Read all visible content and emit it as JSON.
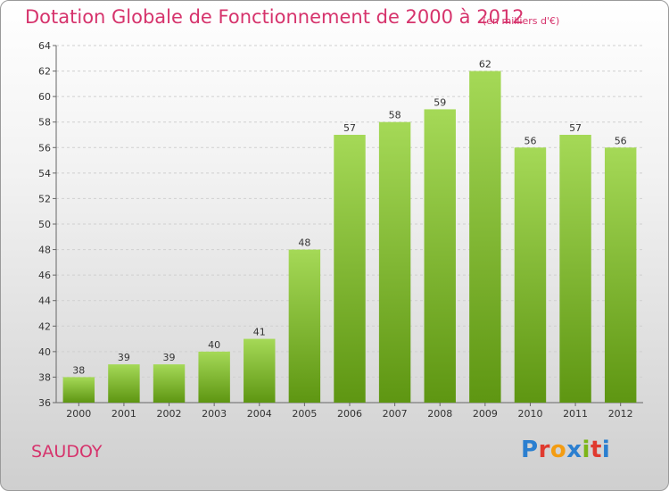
{
  "header": {
    "title": "Dotation Globale de Fonctionnement de 2000 à 2012",
    "unit_note": "(en milliers d'€)"
  },
  "footer": {
    "commune": "SAUDOY",
    "logo_text": "Proxiti",
    "logo_colors": [
      "#2b7fd0",
      "#e03a2f",
      "#f39c12",
      "#2b7fd0",
      "#7cb518",
      "#e03a2f",
      "#2b7fd0"
    ]
  },
  "colors": {
    "bar_top": "#a5d957",
    "bar_bottom": "#5e9612",
    "title": "#d6336c"
  },
  "chart_data": {
    "type": "bar",
    "title": "Dotation Globale de Fonctionnement de 2000 à 2012",
    "categories": [
      "2000",
      "2001",
      "2002",
      "2003",
      "2004",
      "2005",
      "2006",
      "2007",
      "2008",
      "2009",
      "2010",
      "2011",
      "2012"
    ],
    "values": [
      38,
      39,
      39,
      40,
      41,
      48,
      57,
      58,
      59,
      62,
      56,
      57,
      56
    ],
    "ylim": [
      36,
      64
    ],
    "yticks": [
      36,
      38,
      40,
      42,
      44,
      46,
      48,
      50,
      52,
      54,
      56,
      58,
      60,
      62,
      64
    ],
    "grid": true,
    "xlabel": "",
    "ylabel": ""
  }
}
